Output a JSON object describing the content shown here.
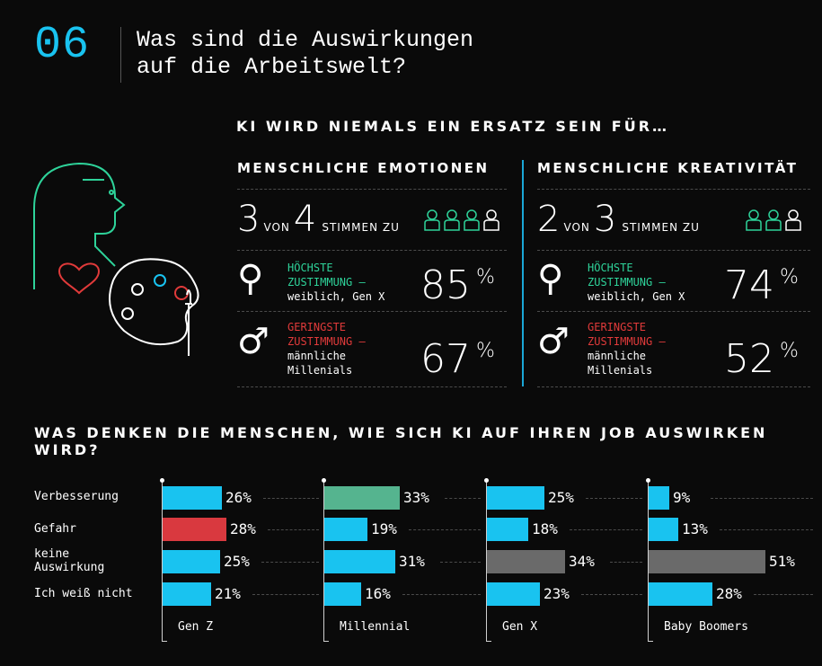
{
  "header": {
    "number": "06",
    "title": "Was sind die Auswirkungen\nauf die Arbeitswelt?"
  },
  "section1": {
    "heading": "KI WIRD NIEMALS EIN ERSATZ SEIN FÜR…",
    "columns": [
      {
        "title": "MENSCHLICHE EMOTIONEN",
        "ratio_num": "3",
        "ratio_von": "VON",
        "ratio_den": "4",
        "ratio_text": "STIMMEN ZU",
        "people_count": 4,
        "high_label_1": "HÖCHSTE",
        "high_label_2": "ZUSTIMMUNG –",
        "high_detail": "weiblich, Gen X",
        "high_value": "85",
        "low_label_1": "GERINGSTE",
        "low_label_2": "ZUSTIMMUNG –",
        "low_detail_1": "männliche",
        "low_detail_2": "Millenials",
        "low_value": "67",
        "pct_sign": "%"
      },
      {
        "title": "MENSCHLICHE KREATIVITÄT",
        "ratio_num": "2",
        "ratio_von": "VON",
        "ratio_den": "3",
        "ratio_text": "STIMMEN ZU",
        "people_count": 3,
        "high_label_1": "HÖCHSTE",
        "high_label_2": "ZUSTIMMUNG –",
        "high_detail": "weiblich, Gen X",
        "high_value": "74",
        "low_label_1": "GERINGSTE",
        "low_label_2": "ZUSTIMMUNG –",
        "low_detail_1": "männliche",
        "low_detail_2": "Millenials",
        "low_value": "52",
        "pct_sign": "%"
      }
    ]
  },
  "section2": {
    "heading": "WAS DENKEN DIE MENSCHEN, WIE SICH KI AUF IHREN JOB AUSWIRKEN WIRD?",
    "row_labels": [
      "Verbesserung",
      "Gefahr",
      "keine\nAuswirkung",
      "Ich weiß nicht"
    ]
  },
  "colors": {
    "accent_blue": "#19c3f0",
    "highlight_green": "#55b48f",
    "highlight_red": "#d9393f",
    "neutral_gray": "#6a6a6a",
    "line_green": "#2ed39a"
  },
  "icons": [
    "person-head-outline-icon",
    "heart-icon",
    "painter-palette-icon",
    "people-group-icon",
    "female-symbol-icon",
    "male-symbol-icon"
  ],
  "chart_data": {
    "type": "bar",
    "categories": [
      "Verbesserung",
      "Gefahr",
      "keine Auswirkung",
      "Ich weiß nicht"
    ],
    "series": [
      {
        "name": "Gen Z",
        "values": [
          26,
          28,
          25,
          21
        ],
        "highlight": [
          null,
          "red",
          null,
          null
        ]
      },
      {
        "name": "Millennial",
        "values": [
          33,
          19,
          31,
          16
        ],
        "highlight": [
          "green",
          null,
          null,
          null
        ]
      },
      {
        "name": "Gen X",
        "values": [
          25,
          18,
          34,
          23
        ],
        "highlight": [
          null,
          null,
          "gray",
          null
        ]
      },
      {
        "name": "Baby Boomers",
        "values": [
          9,
          13,
          51,
          28
        ],
        "highlight": [
          null,
          null,
          "gray",
          null
        ]
      }
    ],
    "unit": "%"
  }
}
